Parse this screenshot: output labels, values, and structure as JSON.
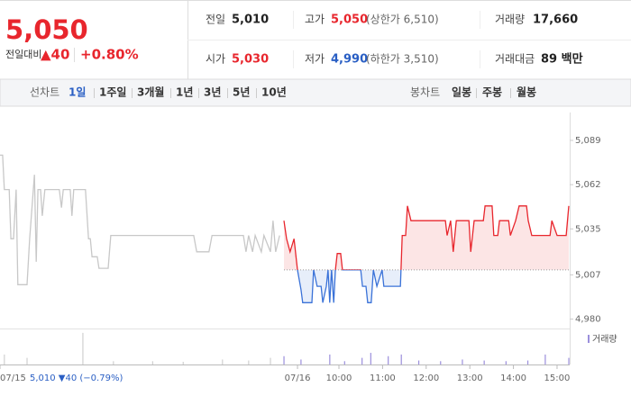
{
  "quote": {
    "price": "5,050",
    "change_label": "전일대비",
    "change": "▲40",
    "change_pct": "+0.80%"
  },
  "summary": [
    [
      {
        "label": "전일",
        "value": "5,010"
      },
      {
        "label": "고가",
        "value": "5,050",
        "extra": "(상한가 6,510)"
      },
      {
        "label": "거래량",
        "value": "17,660"
      }
    ],
    [
      {
        "label": "시가",
        "value": "5,030"
      },
      {
        "label": "저가",
        "value": "4,990",
        "extra": "(하한가 3,510)"
      },
      {
        "label": "거래대금",
        "value": "89 백만"
      }
    ]
  ],
  "tabs": {
    "line_label": "선차트",
    "line_periods": [
      "1일",
      "1주일",
      "3개월",
      "1년",
      "3년",
      "5년",
      "10년"
    ],
    "candle_label": "봉차트",
    "candle_periods": [
      "일봉",
      "주봉",
      "월봉"
    ]
  },
  "chart_data": {
    "type": "line",
    "annotation": "5,010 ▼40 (−0.79%)",
    "baseline": 5010,
    "up_color": "#e8262d",
    "down_color": "#3a72d8",
    "series": [
      {
        "color": "#c8c8c8",
        "x": [
          0,
          0.06,
          0.1,
          0.21,
          0.25,
          0.31,
          0.37,
          0.41,
          0.62,
          0.68,
          0.72,
          0.79,
          0.83,
          0.87,
          0.93,
          0.97,
          1.03,
          1.36,
          1.41,
          1.45,
          1.61,
          1.65,
          1.69,
          1.96,
          2.03,
          2.07,
          2.11,
          2.23,
          2.27,
          2.48,
          2.54,
          4.44,
          4.51,
          4.79,
          4.86,
          5.58,
          5.64,
          5.7,
          5.79,
          5.85,
          5.99,
          6.05,
          6.2,
          6.26,
          6.32,
          6.41
        ],
        "values": [
          5080,
          5080,
          5059,
          5059,
          5029,
          5029,
          5059,
          5001,
          5001,
          5029,
          5043,
          5068,
          5015,
          5059,
          5059,
          5043,
          5059,
          5059,
          5048,
          5059,
          5059,
          5043,
          5059,
          5059,
          5029,
          5029,
          5018,
          5018,
          5011,
          5011,
          5031,
          5031,
          5021,
          5021,
          5031,
          5031,
          5021,
          5031,
          5021,
          5031,
          5021,
          5031,
          5021,
          5040,
          5021,
          5031
        ]
      },
      {
        "color": "#e8262d",
        "x": [
          6.51,
          6.57,
          6.65,
          6.74,
          6.82,
          6.9,
          6.94,
          7.15,
          7.19,
          7.27,
          7.36,
          7.4,
          7.48,
          7.52,
          7.56,
          7.6,
          7.65,
          7.69,
          7.73,
          7.81,
          7.85,
          8.27,
          8.31,
          8.39,
          8.43,
          8.51,
          8.56,
          8.64,
          8.76,
          8.8,
          9.18,
          9.22,
          9.3,
          9.34,
          9.42,
          10.21,
          10.25,
          10.33,
          10.39,
          10.46,
          10.75,
          10.79,
          10.87,
          11.08,
          11.12,
          11.28,
          11.32,
          11.41,
          11.45,
          11.66,
          11.7,
          11.82,
          11.9,
          12.07,
          12.11,
          12.19,
          12.61,
          12.65,
          12.77,
          12.98,
          13.04
        ],
        "values": [
          5040,
          5029,
          5021,
          5029,
          5010,
          4998,
          4990,
          4990,
          5010,
          5000,
          5000,
          4990,
          5000,
          5010,
          4990,
          5010,
          4990,
          5010,
          5020,
          5020,
          5010,
          5010,
          5000,
          5000,
          4990,
          4990,
          5010,
          5000,
          5010,
          5000,
          5000,
          5031,
          5031,
          5049,
          5040,
          5040,
          5031,
          5040,
          5021,
          5040,
          5040,
          5021,
          5040,
          5040,
          5049,
          5049,
          5031,
          5031,
          5040,
          5040,
          5031,
          5040,
          5049,
          5049,
          5040,
          5031,
          5031,
          5040,
          5031,
          5031,
          5049
        ]
      }
    ],
    "volume": {
      "name": "거래량",
      "ylim": [
        0,
        100
      ],
      "series": [
        {
          "color": "#d0d0d0",
          "x": [
            0.1,
            0.62,
            1.9,
            2.6,
            3.5,
            4.2,
            5.1,
            5.7,
            6.2
          ],
          "values": [
            30,
            20,
            95,
            10,
            10,
            8,
            15,
            12,
            20
          ]
        },
        {
          "color": "#9b8fdc",
          "x": [
            6.51,
            6.9,
            7.56,
            7.9,
            8.3,
            8.5,
            8.9,
            9.2,
            9.6,
            10.1,
            10.6,
            11.1,
            11.6,
            12.1,
            12.5,
            13.04
          ],
          "values": [
            25,
            15,
            30,
            10,
            20,
            35,
            25,
            30,
            12,
            10,
            15,
            12,
            10,
            12,
            30,
            20
          ]
        }
      ]
    },
    "xlim": [
      0,
      13.06
    ],
    "xticks": [
      {
        "value": 0,
        "label": "07/15"
      },
      {
        "value": 6.82,
        "label": "07/16"
      },
      {
        "value": 7.77,
        "label": "10:00"
      },
      {
        "value": 8.77,
        "label": "11:00"
      },
      {
        "value": 9.77,
        "label": "12:00"
      },
      {
        "value": 10.77,
        "label": "13:00"
      },
      {
        "value": 11.77,
        "label": "14:00"
      },
      {
        "value": 12.77,
        "label": "15:00"
      }
    ],
    "ylim": [
      4977,
      5106
    ],
    "yticks": [
      {
        "value": 5089,
        "label": "5,089"
      },
      {
        "value": 5062,
        "label": "5,062"
      },
      {
        "value": 5035,
        "label": "5,035"
      },
      {
        "value": 5007,
        "label": "5,007"
      },
      {
        "value": 4980,
        "label": "4,980"
      }
    ]
  }
}
